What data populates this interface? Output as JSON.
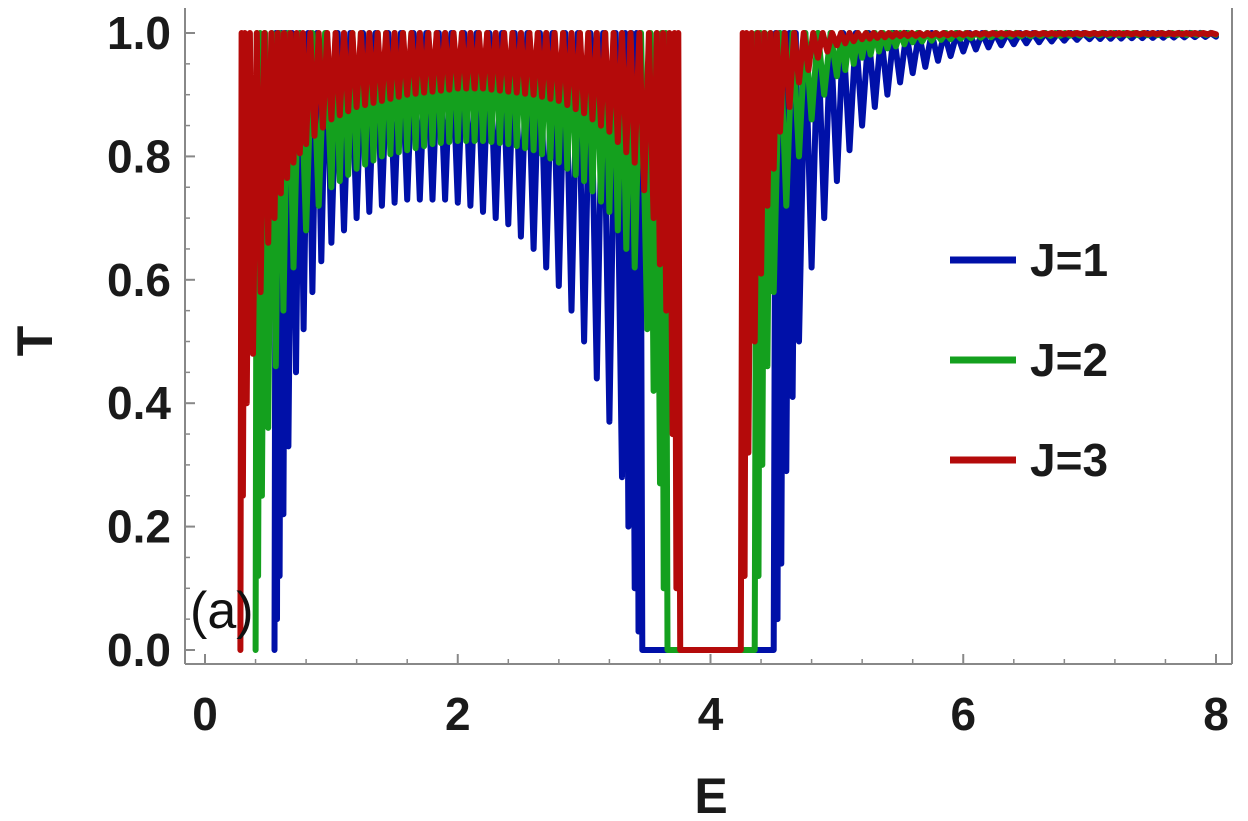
{
  "chart_data": {
    "type": "line",
    "title": "",
    "xlabel": "E",
    "ylabel": "T",
    "xlim": [
      0,
      8
    ],
    "ylim": [
      0,
      1
    ],
    "xticks": [
      0,
      2,
      4,
      6,
      8
    ],
    "xtick_labels": [
      "0",
      "2",
      "4",
      "6",
      "8"
    ],
    "yticks": [
      0,
      0.2,
      0.4,
      0.6,
      0.8,
      1.0
    ],
    "ytick_labels": [
      "0.0",
      "0.2",
      "0.4",
      "0.6",
      "0.8",
      "1.0"
    ],
    "grid": false,
    "legend_position": "right",
    "annotation": "(a)",
    "series": [
      {
        "name": "J=1",
        "color": "#0010a8",
        "x": [
          0.55,
          0.57,
          0.59,
          0.62,
          0.66,
          0.72,
          0.78,
          0.85,
          0.92,
          1.0,
          1.1,
          1.2,
          1.3,
          1.4,
          1.5,
          1.6,
          1.7,
          1.8,
          1.9,
          2.0,
          2.1,
          2.2,
          2.3,
          2.4,
          2.5,
          2.6,
          2.7,
          2.8,
          2.9,
          3.0,
          3.1,
          3.2,
          3.3,
          3.35,
          3.4,
          3.43,
          3.46,
          4.5,
          4.53,
          4.56,
          4.6,
          4.65,
          4.7,
          4.8,
          4.9,
          5.0,
          5.1,
          5.2,
          5.3,
          5.4,
          5.5,
          5.6,
          5.8,
          6.0,
          6.3,
          6.6,
          7.0,
          7.5,
          8.0
        ],
        "y": [
          0.0,
          0.05,
          0.12,
          0.22,
          0.33,
          0.45,
          0.52,
          0.58,
          0.63,
          0.66,
          0.68,
          0.7,
          0.71,
          0.72,
          0.725,
          0.73,
          0.73,
          0.73,
          0.73,
          0.725,
          0.72,
          0.71,
          0.7,
          0.69,
          0.67,
          0.65,
          0.62,
          0.59,
          0.55,
          0.5,
          0.44,
          0.37,
          0.28,
          0.2,
          0.1,
          0.03,
          0.0,
          0.0,
          0.05,
          0.14,
          0.29,
          0.41,
          0.5,
          0.62,
          0.7,
          0.76,
          0.81,
          0.85,
          0.88,
          0.9,
          0.92,
          0.935,
          0.955,
          0.97,
          0.98,
          0.985,
          0.99,
          0.992,
          0.994
        ]
      },
      {
        "name": "J=2",
        "color": "#14a01e",
        "x": [
          0.4,
          0.42,
          0.45,
          0.5,
          0.56,
          0.62,
          0.7,
          0.8,
          0.9,
          1.0,
          1.2,
          1.4,
          1.6,
          1.8,
          2.0,
          2.2,
          2.4,
          2.6,
          2.8,
          3.0,
          3.2,
          3.4,
          3.5,
          3.55,
          3.6,
          3.63,
          3.66,
          4.35,
          4.38,
          4.41,
          4.45,
          4.5,
          4.6,
          4.7,
          4.8,
          4.9,
          5.0,
          5.2,
          5.4,
          5.6,
          5.9,
          6.3,
          7.0,
          8.0
        ],
        "y": [
          0.0,
          0.12,
          0.25,
          0.36,
          0.46,
          0.55,
          0.62,
          0.68,
          0.72,
          0.75,
          0.78,
          0.8,
          0.81,
          0.82,
          0.825,
          0.825,
          0.82,
          0.81,
          0.79,
          0.76,
          0.71,
          0.62,
          0.52,
          0.42,
          0.27,
          0.1,
          0.0,
          0.0,
          0.12,
          0.3,
          0.46,
          0.58,
          0.72,
          0.8,
          0.86,
          0.9,
          0.93,
          0.96,
          0.975,
          0.985,
          0.99,
          0.994,
          0.996,
          0.997
        ]
      },
      {
        "name": "J=3",
        "color": "#b40a0a",
        "x": [
          0.28,
          0.3,
          0.33,
          0.38,
          0.44,
          0.5,
          0.6,
          0.7,
          0.8,
          1.0,
          1.2,
          1.4,
          1.6,
          1.8,
          2.0,
          2.2,
          2.4,
          2.6,
          2.8,
          3.0,
          3.2,
          3.4,
          3.55,
          3.65,
          3.7,
          3.73,
          3.76,
          4.24,
          4.27,
          4.3,
          4.35,
          4.45,
          4.55,
          4.7,
          4.85,
          5.0,
          5.2,
          5.5,
          6.0,
          7.0,
          8.0
        ],
        "y": [
          0.0,
          0.25,
          0.4,
          0.48,
          0.58,
          0.66,
          0.74,
          0.79,
          0.82,
          0.86,
          0.88,
          0.89,
          0.9,
          0.905,
          0.91,
          0.91,
          0.905,
          0.9,
          0.89,
          0.87,
          0.84,
          0.79,
          0.7,
          0.55,
          0.35,
          0.1,
          0.0,
          0.0,
          0.12,
          0.32,
          0.5,
          0.72,
          0.84,
          0.92,
          0.96,
          0.98,
          0.99,
          0.995,
          0.997,
          0.998,
          0.998
        ]
      }
    ]
  }
}
